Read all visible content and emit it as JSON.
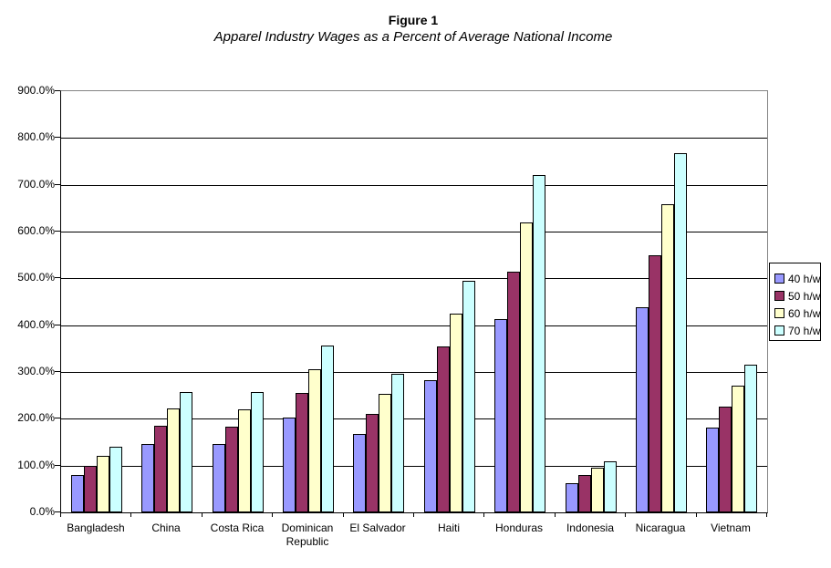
{
  "chart_data": {
    "type": "bar",
    "title": "Figure 1",
    "subtitle": "Apparel Industry Wages as a Percent of Average National Income",
    "categories": [
      "Bangladesh",
      "China",
      "Costa Rica",
      "Dominican Republic",
      "El Salvador",
      "Haiti",
      "Honduras",
      "Indonesia",
      "Nicaragua",
      "Vietnam"
    ],
    "series": [
      {
        "name": "40 h/w",
        "color": "#9999FF",
        "values": [
          80,
          147,
          147,
          203,
          168,
          283,
          413,
          63,
          439,
          181
        ]
      },
      {
        "name": "50 h/w",
        "color": "#993366",
        "values": [
          100,
          185,
          184,
          255,
          211,
          355,
          515,
          79,
          550,
          225
        ]
      },
      {
        "name": "60 h/w",
        "color": "#FFFFCC",
        "values": [
          120,
          222,
          221,
          306,
          253,
          425,
          619,
          96,
          659,
          270
        ]
      },
      {
        "name": "70 h/w",
        "color": "#CCFFFF",
        "values": [
          140,
          258,
          258,
          356,
          296,
          494,
          721,
          110,
          768,
          315
        ]
      }
    ],
    "ylim": [
      0,
      900
    ],
    "ytick_step": 100,
    "ytick_suffix": "%",
    "ytick_decimals": 1,
    "grid": true,
    "legend_position": "right",
    "colors": {
      "background": "#FFFFFF",
      "gridline": "#000000",
      "plot_border": "#848484",
      "axis": "#000000",
      "text": "#000000"
    }
  }
}
